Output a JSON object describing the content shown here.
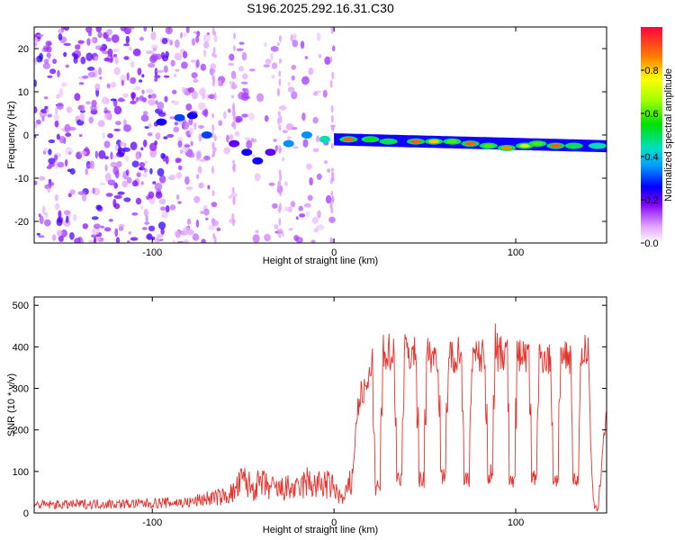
{
  "chart_data": [
    {
      "type": "heatmap",
      "title": "S196.2025.292.16.31.C30",
      "xlabel": "Height of straight line (km)",
      "ylabel": "Frequency (Hz)",
      "xlim": [
        -165,
        150
      ],
      "ylim": [
        -25,
        25
      ],
      "xticks": [
        -100,
        0,
        100
      ],
      "yticks": [
        -20,
        -10,
        0,
        10,
        20
      ],
      "colorbar": {
        "label": "Normalized spectral amplitude",
        "range": [
          0,
          1
        ],
        "ticks": [
          0.0,
          0.2,
          0.4,
          0.6,
          0.8
        ]
      },
      "grid": false,
      "ridge_points": [
        {
          "x": -95,
          "y": 3,
          "v": 0.25
        },
        {
          "x": -85,
          "y": 4,
          "v": 0.3
        },
        {
          "x": -78,
          "y": 4.5,
          "v": 0.25
        },
        {
          "x": -70,
          "y": 0,
          "v": 0.3
        },
        {
          "x": -55,
          "y": -2,
          "v": 0.2
        },
        {
          "x": -48,
          "y": -4,
          "v": 0.25
        },
        {
          "x": -42,
          "y": -6,
          "v": 0.25
        },
        {
          "x": -35,
          "y": -4,
          "v": 0.2
        },
        {
          "x": -25,
          "y": -2,
          "v": 0.35
        },
        {
          "x": -15,
          "y": 0,
          "v": 0.35
        },
        {
          "x": -5,
          "y": -1,
          "v": 0.45
        },
        {
          "x": 8,
          "y": -1,
          "v": 0.9
        },
        {
          "x": 20,
          "y": -1,
          "v": 0.55
        },
        {
          "x": 30,
          "y": -1.5,
          "v": 0.5
        },
        {
          "x": 45,
          "y": -1.5,
          "v": 0.9
        },
        {
          "x": 55,
          "y": -1.5,
          "v": 0.8
        },
        {
          "x": 65,
          "y": -1.5,
          "v": 0.6
        },
        {
          "x": 75,
          "y": -2,
          "v": 0.9
        },
        {
          "x": 85,
          "y": -2.5,
          "v": 0.6
        },
        {
          "x": 95,
          "y": -3,
          "v": 0.85
        },
        {
          "x": 105,
          "y": -2.5,
          "v": 0.7
        },
        {
          "x": 112,
          "y": -2,
          "v": 0.6
        },
        {
          "x": 122,
          "y": -2.5,
          "v": 0.9
        },
        {
          "x": 132,
          "y": -2.5,
          "v": 0.5
        },
        {
          "x": 145,
          "y": -2.5,
          "v": 0.45
        }
      ]
    },
    {
      "type": "line",
      "xlabel": "Height of straight line (km)",
      "ylabel": "SNR (10 * v/v)",
      "xlim": [
        -165,
        150
      ],
      "ylim": [
        0,
        520
      ],
      "xticks": [
        -100,
        0,
        100
      ],
      "yticks": [
        0,
        100,
        200,
        300,
        400,
        500
      ],
      "color": "#e8322c",
      "grid": false,
      "x": [
        -165,
        -150,
        -130,
        -110,
        -90,
        -80,
        -70,
        -60,
        -55,
        -50,
        -45,
        -40,
        -35,
        -30,
        -25,
        -20,
        -15,
        -10,
        -5,
        0,
        5,
        10,
        12,
        13,
        15,
        17,
        20,
        22,
        25,
        30,
        35,
        40,
        45,
        50,
        55,
        60,
        62,
        65,
        70,
        75,
        80,
        85,
        88,
        90,
        95,
        100,
        105,
        110,
        115,
        120,
        125,
        130,
        135,
        138,
        140,
        142,
        143,
        145,
        147,
        148,
        150
      ],
      "y": [
        20,
        20,
        22,
        22,
        25,
        25,
        35,
        40,
        50,
        80,
        60,
        70,
        60,
        55,
        60,
        55,
        75,
        65,
        70,
        60,
        30,
        80,
        200,
        250,
        290,
        290,
        330,
        390,
        380,
        390,
        380,
        390,
        380,
        385,
        380,
        390,
        370,
        380,
        390,
        380,
        375,
        390,
        420,
        380,
        380,
        385,
        380,
        375,
        380,
        370,
        375,
        380,
        385,
        390,
        380,
        60,
        20,
        5,
        100,
        170,
        240
      ],
      "dips": [
        {
          "x": 24,
          "y": 60
        },
        {
          "x": 36,
          "y": 85
        },
        {
          "x": 48,
          "y": 80
        },
        {
          "x": 60,
          "y": 90
        },
        {
          "x": 73,
          "y": 80
        },
        {
          "x": 86,
          "y": 85
        },
        {
          "x": 98,
          "y": 80
        },
        {
          "x": 110,
          "y": 85
        },
        {
          "x": 122,
          "y": 80
        },
        {
          "x": 133,
          "y": 80
        }
      ]
    }
  ]
}
